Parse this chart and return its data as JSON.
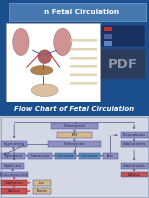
{
  "title_text": "n Fetal Circulation",
  "subtitle_text": "Flow Chart of Fetal Circulation",
  "bg_top": "#1a4e8c",
  "bg_bottom": "#1a4e8c",
  "slide_bg": "#c8ccd8",
  "flow_bg": "#d0d4e0",
  "title_box_color": "#5080b0",
  "anatomy_bg": "#ffffff",
  "pdf_color": "#8090a0",
  "boxes": {
    "pulmonary_trunk": {
      "label": "Pulmonary trunk",
      "fc": "#9090c0"
    },
    "lvpo": {
      "label": "LVPO",
      "fc": "#d4b888"
    },
    "pulmonary_veins": {
      "label": "Pulmonary veins",
      "fc": "#9090c0"
    },
    "right_ventricle": {
      "label": "Right ventricle",
      "fc": "#9090c0"
    },
    "foramen_ovale": {
      "label": "Foramen ovale",
      "fc": "#9090c0"
    },
    "left_ventricle1": {
      "label": "Left ventricle",
      "fc": "#6090c0"
    },
    "left_ventricle2": {
      "label": "Left ventricle",
      "fc": "#6090c0"
    },
    "aorta": {
      "label": "Aorta",
      "fc": "#9090c0"
    },
    "ductus_arteriosus": {
      "label": "Ductus arteriosus",
      "fc": "#9090c0"
    },
    "umbilical_arteries": {
      "label": "Umbilical arteries",
      "fc": "#9090c0"
    },
    "umbilical_vessels_r": {
      "label": "Umbilical vessels",
      "fc": "#9090c0"
    },
    "oxygen_carrying": {
      "label": "Oxygen-carrying",
      "fc": "#9090c0"
    },
    "hepatic_veins": {
      "label": "Hepatic veins",
      "fc": "#9090c0"
    },
    "ductus_venosus": {
      "label": "Ductus venosus (liver)",
      "fc": "#9090c0"
    },
    "umbilical_vein": {
      "label": "Umbilical vein",
      "fc": "#c85050"
    },
    "umbilicus": {
      "label": "Umbilicus",
      "fc": "#c85050"
    },
    "liver": {
      "label": "Liver",
      "fc": "#d4b888"
    },
    "placenta": {
      "label": "Placenta",
      "fc": "#d4b888"
    }
  },
  "arrow_color": "#505080",
  "arrow_color_red": "#c03030"
}
